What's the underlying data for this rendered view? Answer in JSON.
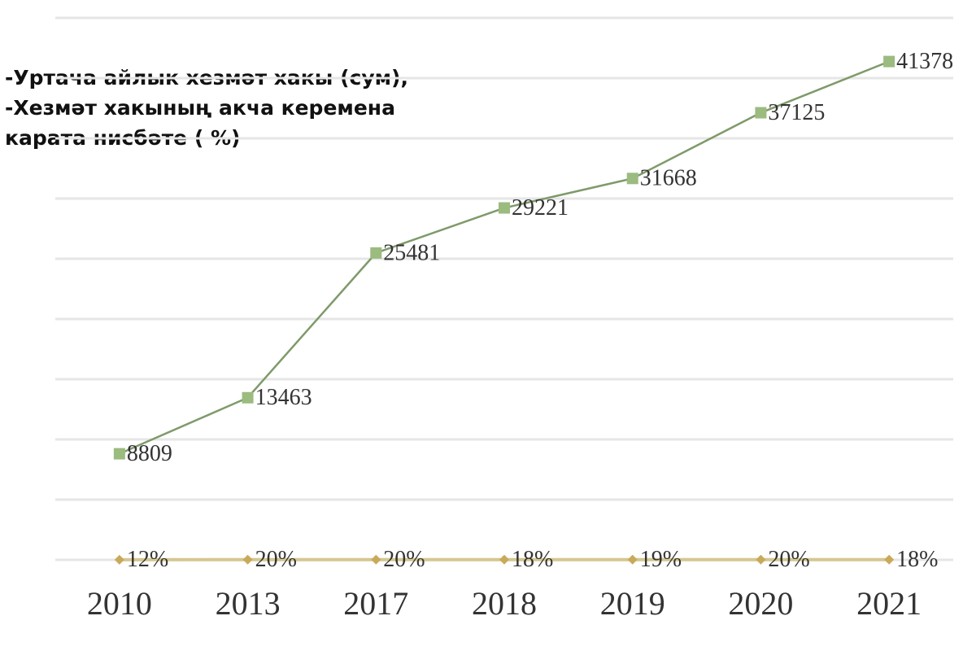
{
  "chart_data": {
    "type": "line",
    "title": [
      "-Уртача айлык хезмәт хакы (сум),",
      "-Хезмәт хакының акча   керемена",
      "карата нисбәте ( %)"
    ],
    "categories": [
      "2010",
      "2013",
      "2017",
      "2018",
      "2019",
      "2020",
      "2021"
    ],
    "series": [
      {
        "color": "#7f9a6a",
        "marker_color": "#9bbb7f",
        "values": [
          8809,
          13463,
          25481,
          29221,
          31668,
          37125,
          41378
        ]
      },
      {
        "color": "#d6c690",
        "marker_color": "#c9a95a",
        "values": [
          12,
          20,
          20,
          18,
          19,
          20,
          18
        ],
        "value_labels": [
          "12%",
          "20%",
          "20%",
          "18%",
          "19%",
          "20%",
          "18%"
        ]
      }
    ],
    "ylim": [
      0,
      45000
    ],
    "yticks": [
      0,
      5000,
      10000,
      15000,
      20000,
      25000,
      30000,
      35000,
      40000,
      45000
    ],
    "grid": true
  }
}
